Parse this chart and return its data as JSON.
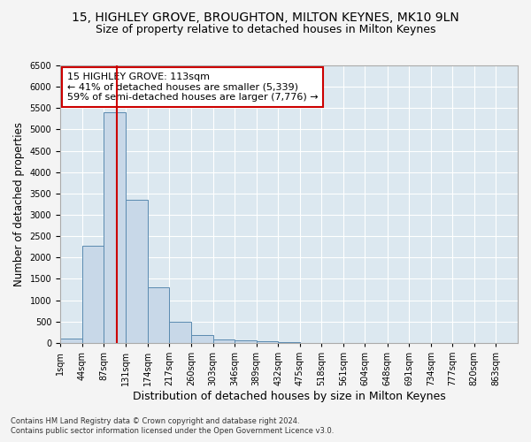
{
  "title1": "15, HIGHLEY GROVE, BROUGHTON, MILTON KEYNES, MK10 9LN",
  "title2": "Size of property relative to detached houses in Milton Keynes",
  "xlabel": "Distribution of detached houses by size in Milton Keynes",
  "ylabel": "Number of detached properties",
  "footnote1": "Contains HM Land Registry data © Crown copyright and database right 2024.",
  "footnote2": "Contains public sector information licensed under the Open Government Licence v3.0.",
  "bar_values": [
    100,
    2280,
    5400,
    3350,
    1300,
    490,
    190,
    80,
    55,
    30,
    10,
    5,
    3,
    2,
    1,
    0,
    0,
    0,
    0,
    0
  ],
  "bin_edges": [
    1,
    44,
    87,
    131,
    174,
    217,
    260,
    303,
    346,
    389,
    432,
    475,
    518,
    561,
    604,
    648,
    691,
    734,
    777,
    820,
    863
  ],
  "tick_labels": [
    "1sqm",
    "44sqm",
    "87sqm",
    "131sqm",
    "174sqm",
    "217sqm",
    "260sqm",
    "303sqm",
    "346sqm",
    "389sqm",
    "432sqm",
    "475sqm",
    "518sqm",
    "561sqm",
    "604sqm",
    "648sqm",
    "691sqm",
    "734sqm",
    "777sqm",
    "820sqm",
    "863sqm"
  ],
  "bar_color": "#c8d8e8",
  "bar_edge_color": "#5a8ab0",
  "vline_x": 113,
  "vline_color": "#cc0000",
  "annotation_title": "15 HIGHLEY GROVE: 113sqm",
  "annotation_line1": "← 41% of detached houses are smaller (5,339)",
  "annotation_line2": "59% of semi-detached houses are larger (7,776) →",
  "annotation_box_color": "#cc0000",
  "ylim": [
    0,
    6500
  ],
  "yticks": [
    0,
    500,
    1000,
    1500,
    2000,
    2500,
    3000,
    3500,
    4000,
    4500,
    5000,
    5500,
    6000,
    6500
  ],
  "background_color": "#dce8f0",
  "grid_color": "#ffffff",
  "title1_fontsize": 10,
  "title2_fontsize": 9,
  "tick_fontsize": 7,
  "annotation_fontsize": 8,
  "xlabel_fontsize": 9,
  "ylabel_fontsize": 8.5
}
